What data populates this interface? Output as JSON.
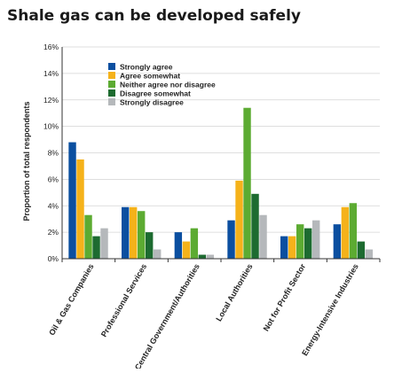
{
  "chart_data": {
    "type": "bar",
    "title": "Shale gas can be developed safely",
    "ylabel": "Proportion of total respondents",
    "xlabel": "",
    "ylim": [
      0,
      16
    ],
    "yticks": [
      "0%",
      "2%",
      "4%",
      "6%",
      "8%",
      "10%",
      "12%",
      "14%",
      "16%"
    ],
    "grid": true,
    "legend_position": "top-left",
    "categories": [
      "Oil & Gas Companies",
      "Professional Services",
      "Central Government/Authorities",
      "Local Authorities",
      "Not for Profit Sector",
      "Energy-Intensive Industries"
    ],
    "series": [
      {
        "name": "Strongly agree",
        "color": "#0b4fa0",
        "values": [
          8.8,
          3.9,
          2.0,
          2.9,
          1.7,
          2.6
        ]
      },
      {
        "name": "Agree somewhat",
        "color": "#f5b21a",
        "values": [
          7.5,
          3.9,
          1.3,
          5.9,
          1.7,
          3.9
        ]
      },
      {
        "name": "Neither agree nor disagree",
        "color": "#5cab32",
        "values": [
          3.3,
          3.6,
          2.3,
          11.4,
          2.6,
          4.2
        ]
      },
      {
        "name": "Disagree somewhat",
        "color": "#1d6b30",
        "values": [
          1.7,
          2.0,
          0.3,
          4.9,
          2.3,
          1.3
        ]
      },
      {
        "name": "Strongly disagree",
        "color": "#b5b8bb",
        "values": [
          2.3,
          0.7,
          0.3,
          3.3,
          2.9,
          0.7
        ]
      }
    ]
  }
}
